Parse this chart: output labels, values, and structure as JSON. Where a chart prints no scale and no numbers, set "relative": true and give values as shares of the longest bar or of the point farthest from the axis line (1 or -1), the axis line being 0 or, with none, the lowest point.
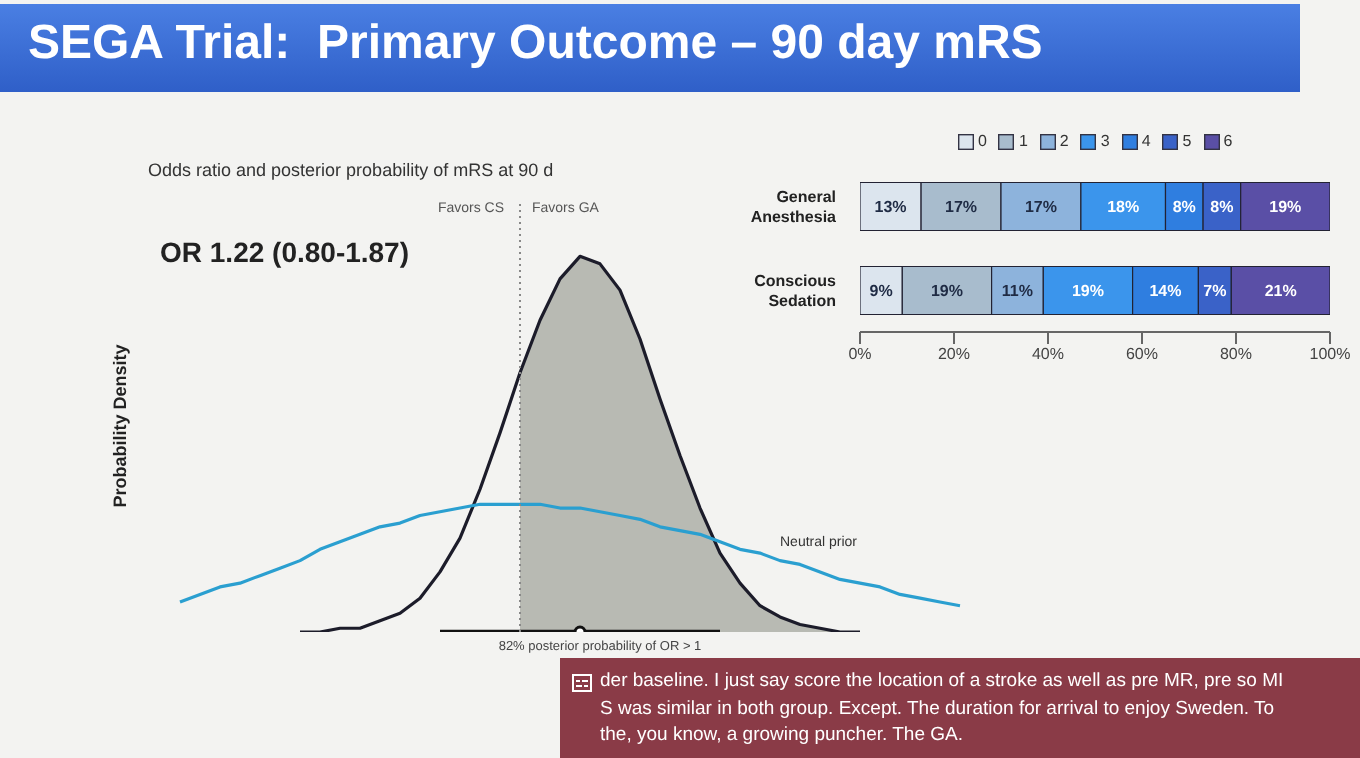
{
  "chart_data": [
    {
      "type": "line",
      "title": "SEGA Trial:  Primary Outcome – 90 day mRS",
      "subtitle": "Odds ratio and posterior probability of mRS at 90 d",
      "ylabel": "Probability Density",
      "relative": true,
      "annotations": [
        "OR 1.22 (0.80-1.87)",
        "Favors CS",
        "Favors GA",
        "82% posterior probability of OR > 1",
        "der baseline. I just say score the location of a stroke as well as pre MR, pre so MI S was similar in both group. Except. The duration for arrival to enjoy Sweden. To the, you know, a growing puncher. The GA."
      ],
      "categories": [
        null,
        null,
        null,
        null,
        null,
        null,
        null,
        null,
        null,
        null,
        null,
        null,
        null,
        null,
        null,
        null,
        null,
        null,
        null,
        null,
        null,
        null,
        null,
        null,
        null,
        null,
        null,
        null,
        null,
        null,
        null,
        null,
        null,
        null,
        null,
        null,
        null,
        null,
        null,
        null
      ],
      "series": [
        {
          "type": "line",
          "color": "#1c1c2a",
          "values": [
            null,
            null,
            null,
            null,
            null,
            null,
            0,
            0,
            0.01,
            0.01,
            0.03,
            0.05,
            0.09,
            0.16,
            0.25,
            0.38,
            0.53,
            0.69,
            0.83,
            0.94,
            1.0,
            0.98,
            0.91,
            0.78,
            0.62,
            0.47,
            0.33,
            0.21,
            0.13,
            0.07,
            0.04,
            0.02,
            0.01,
            0,
            0,
            null,
            null,
            null,
            null,
            null
          ],
          "lower": [
            null,
            null,
            null,
            null,
            null,
            null,
            null,
            null,
            null,
            null,
            null,
            null,
            null,
            null,
            null,
            null,
            null,
            0,
            0,
            0,
            0,
            0,
            0,
            0,
            0,
            0,
            0,
            0,
            0,
            0,
            0,
            0,
            0,
            0,
            0,
            null,
            null,
            null,
            null,
            null
          ],
          "upper": [
            null,
            null,
            null,
            null,
            null,
            null,
            null,
            null,
            null,
            null,
            null,
            null,
            null,
            null,
            null,
            null,
            null,
            0.69,
            0.83,
            0.94,
            1.0,
            0.98,
            0.91,
            0.78,
            0.62,
            0.47,
            0.33,
            0.21,
            0.13,
            0.07,
            0.04,
            0.02,
            0.01,
            0,
            0,
            null,
            null,
            null,
            null,
            null
          ]
        },
        {
          "type": "line",
          "name": "Neutral prior",
          "color": "#2a9fd0",
          "values": [
            0.08,
            0.1,
            0.12,
            0.13,
            0.15,
            0.17,
            0.19,
            0.22,
            0.24,
            0.26,
            0.28,
            0.29,
            0.31,
            0.32,
            0.33,
            0.34,
            0.34,
            0.34,
            0.34,
            0.33,
            0.33,
            0.32,
            0.31,
            0.3,
            0.28,
            0.27,
            0.26,
            0.24,
            0.22,
            0.21,
            0.19,
            0.18,
            0.16,
            0.14,
            0.13,
            0.12,
            0.1,
            0.09,
            0.08,
            0.07
          ]
        },
        {
          "type": "line",
          "color": "#111111",
          "values": [
            null,
            null,
            null,
            null,
            null,
            null,
            null,
            null,
            null,
            null,
            null,
            null,
            null,
            0,
            0,
            0,
            0,
            0,
            0,
            0,
            0,
            0,
            0,
            0,
            0,
            0,
            0,
            0,
            null,
            null,
            null,
            null,
            null,
            null,
            null,
            null,
            null,
            null,
            null,
            null
          ]
        }
      ]
    },
    {
      "type": "bar",
      "stacked": true,
      "orientation": "horizontal",
      "legend": "top",
      "categories": [
        "General Anesthesia",
        "Conscious Sedation"
      ],
      "xlim": [
        0,
        100
      ],
      "xticks": [
        {
          "value": 0,
          "label": "0%"
        },
        {
          "value": 20,
          "label": "20%"
        },
        {
          "value": 40,
          "label": "40%"
        },
        {
          "value": 60,
          "label": "60%"
        },
        {
          "value": 80,
          "label": "80%"
        },
        {
          "value": 100,
          "label": "100%"
        }
      ],
      "series": [
        {
          "name": "0",
          "color": "#dce5ee",
          "values": [
            13,
            9
          ],
          "value_labels": [
            "13%",
            "9%"
          ]
        },
        {
          "name": "1",
          "color": "#a8bccd",
          "values": [
            17,
            19
          ],
          "value_labels": [
            "17%",
            "19%"
          ]
        },
        {
          "name": "2",
          "color": "#8db3dc",
          "values": [
            17,
            11
          ],
          "value_labels": [
            "17%",
            "11%"
          ]
        },
        {
          "name": "3",
          "color": "#3b95ec",
          "values": [
            18,
            19
          ],
          "value_labels": [
            "18%",
            "19%"
          ]
        },
        {
          "name": "4",
          "color": "#2f7ee0",
          "values": [
            8,
            14
          ],
          "value_labels": [
            "8%",
            "14%"
          ]
        },
        {
          "name": "5",
          "color": "#3a62c8",
          "values": [
            8,
            7
          ],
          "value_labels": [
            "8%",
            "7%"
          ]
        },
        {
          "name": "6",
          "color": "#5a4fa6",
          "values": [
            19,
            21
          ],
          "value_labels": [
            "19%",
            "21%"
          ]
        }
      ]
    }
  ]
}
